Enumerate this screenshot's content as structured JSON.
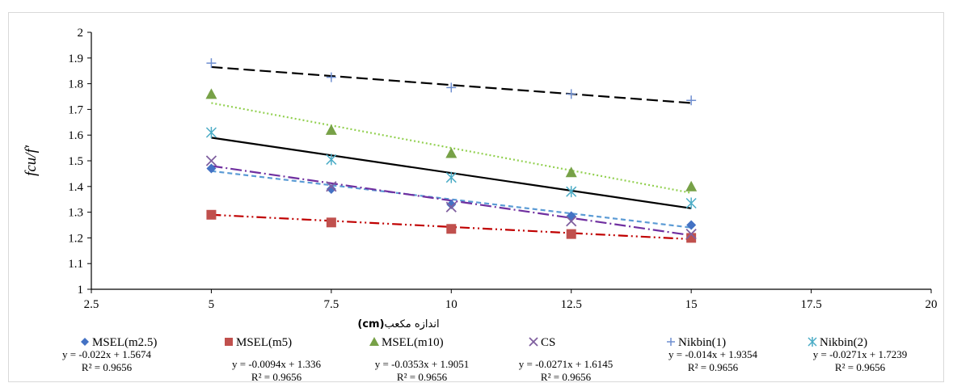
{
  "chart_data": {
    "type": "scatter",
    "xlabel_prefix": "اندازه مکعب",
    "xlabel_unit": "(cm)",
    "ylabel": "fcu/f'",
    "xlim": [
      2.5,
      20
    ],
    "ylim": [
      1,
      2
    ],
    "x_ticks": [
      "2.5",
      "5",
      "7.5",
      "10",
      "12.5",
      "15",
      "17.5",
      "20"
    ],
    "y_ticks": [
      "1",
      "1.1",
      "1.2",
      "1.3",
      "1.4",
      "1.5",
      "1.6",
      "1.7",
      "1.8",
      "1.9",
      "2"
    ],
    "legend_position": "bottom",
    "x": [
      5,
      7.5,
      10,
      12.5,
      15
    ],
    "series": [
      {
        "name": "MSEL(m2.5)",
        "marker": "diamond",
        "color": "#4472c4",
        "values": [
          1.47,
          1.39,
          1.33,
          1.285,
          1.25
        ],
        "trendline": {
          "color": "#5b9bd5",
          "dash": "6,4",
          "y_start": 1.46,
          "y_end": 1.24
        },
        "equation": "y = -0.022x + 1.5674",
        "r2": "R² = 0.9656"
      },
      {
        "name": "MSEL(m5)",
        "marker": "square",
        "color": "#c0504d",
        "values": [
          1.29,
          1.26,
          1.235,
          1.215,
          1.2
        ],
        "trendline": {
          "color": "#c00000",
          "dash": "12,4,2,4,2,4",
          "y_start": 1.29,
          "y_end": 1.195
        },
        "equation": "y = -0.0094x + 1.336",
        "r2": "R² = 0.9656"
      },
      {
        "name": "MSEL(m10)",
        "marker": "triangle",
        "color": "#77a147",
        "values": [
          1.76,
          1.62,
          1.53,
          1.455,
          1.4
        ],
        "trendline": {
          "color": "#92d050",
          "dash": "2,3",
          "y_start": 1.725,
          "y_end": 1.375
        },
        "equation": "y = -0.0353x + 1.9051",
        "r2": "R² = 0.9656"
      },
      {
        "name": "CS",
        "marker": "x",
        "color": "#7f5f9f",
        "values": [
          1.5,
          1.4,
          1.32,
          1.265,
          1.215
        ],
        "trendline": {
          "color": "#7030a0",
          "dash": "14,4,2,4",
          "y_start": 1.48,
          "y_end": 1.21
        },
        "equation": "y = -0.0271x + 1.6145",
        "r2": "R² = 0.9656"
      },
      {
        "name": "Nikbin(1)",
        "marker": "plus",
        "color": "#6f8fd0",
        "values": [
          1.88,
          1.825,
          1.785,
          1.76,
          1.735
        ],
        "trendline": {
          "color": "#000000",
          "dash": "14,6",
          "y_start": 1.865,
          "y_end": 1.725
        },
        "equation": "y = -0.014x + 1.9354",
        "r2": "R² = 0.9656"
      },
      {
        "name": "Nikbin(2)",
        "marker": "star",
        "color": "#4bacc6",
        "values": [
          1.61,
          1.505,
          1.435,
          1.38,
          1.335
        ],
        "trendline": {
          "color": "#000000",
          "dash": "",
          "y_start": 1.59,
          "y_end": 1.315
        },
        "equation": "y = -0.0271x + 1.7239",
        "r2": "R² = 0.9656"
      }
    ]
  }
}
